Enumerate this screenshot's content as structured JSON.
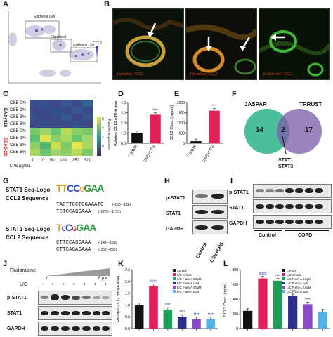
{
  "panels": {
    "A": "A",
    "B": "B",
    "C": "C",
    "D": "D",
    "E": "E",
    "F": "F",
    "G": "G",
    "H": "H",
    "I": "I",
    "J": "J",
    "K": "K",
    "L": "L"
  },
  "panelA": {
    "box1": "Epithelial Cell",
    "box2": "Fibroblast",
    "box3": "Epithelial Cell",
    "legend_title": "CCL2"
  },
  "panelB": {
    "captions": [
      "Epithelial / CCL2",
      "Fibroblast / CCL2",
      "Endothelial / CCL2"
    ]
  },
  "panelC": {
    "row_labels": [
      "CSE-0%",
      "CSE-1%",
      "CSE-3%",
      "CSE-5%",
      "CSE-0%",
      "CSE-1%",
      "CSE-3%",
      "CSE-5%"
    ],
    "group_labels": [
      "EA.hy926",
      "BEAS-2B"
    ],
    "x_ticks": [
      "0",
      "10",
      "50",
      "100",
      "250",
      "500"
    ],
    "xlabel": "LPS ng/mL",
    "scale_ticks": [
      "6",
      "4",
      "2",
      "0"
    ],
    "scale_label": "Relative expression",
    "colors": {
      "low": "#3b4b8a",
      "mid": "#2f9e8f",
      "high": "#e7e44b"
    }
  },
  "panelF": {
    "left_label": "JASPAR",
    "right_label": "TRRUST",
    "left_count": "14",
    "overlap_count": "2",
    "right_count": "17",
    "genes": [
      "STAT1",
      "STAT3"
    ],
    "colors": {
      "left": "#2bb38a",
      "right": "#7a5aa8"
    }
  },
  "panelG": {
    "logo1": "STAT1 Seq-Logo",
    "seq1": "CCL2 Sequence",
    "s1a": "TACTTCCTGGAAATC",
    "p1a": "(-150~-136)",
    "s1b": "TCTCCAGGAAA",
    "p1b": "(-1720~-1710)",
    "logo2": "STAT3 Seq-Logo",
    "seq2": "CCL2 Sequence",
    "s2a": "CTTCCAGGAAA",
    "p2a": "(-148~-138)",
    "s2b": "CTTCAGAGAAA",
    "p2b": "(-302~-292)"
  },
  "panelH": {
    "rows": [
      "p-STAT1",
      "STAT1",
      "GAPDH"
    ],
    "lanes": [
      "Control",
      "CSE+LPS"
    ]
  },
  "panelI": {
    "rows": [
      "p-STAT1",
      "STAT1",
      "GAPDH"
    ],
    "groups": [
      "Control",
      "COPD"
    ]
  },
  "panelJ": {
    "drug": "Fludarabine",
    "conc_low": "0",
    "conc_high": "5 μM",
    "treat_label": "L/C",
    "lane_signs": [
      "-",
      "+",
      "+",
      "+",
      "+",
      "+",
      "+"
    ],
    "rows": [
      "p-STAT1",
      "STAT1",
      "GAPDH"
    ]
  },
  "panelK": {
    "legend": [
      "Control",
      "L/C Vehicle",
      "L/C F-ara-A 0.5μM",
      "L/C F-ara-A 1μM",
      "L/C F-ara-A 2.5μM",
      "L/C F-ara-A 5μM"
    ]
  },
  "panelL": {
    "legend": [
      "Control",
      "L/C Vehicle",
      "L/C F-ara-A 0.5μM",
      "L/C F-ara-A 1μM",
      "L/C F-ara-A 2.5μM",
      "L/C F-ara-A 5μM"
    ]
  },
  "chart_data": [
    {
      "id": "D",
      "type": "bar",
      "categories": [
        "Control",
        "CSE+LPS"
      ],
      "values": [
        1.0,
        2.8
      ],
      "ylabel": "Relative CCL2 mRNA level",
      "ylim": [
        0,
        4
      ],
      "yticks": [
        "0.0",
        "1.0",
        "2.0",
        "3.0",
        "4.0"
      ],
      "annotations": [
        "****"
      ],
      "colors": [
        "#111111",
        "#e0215a"
      ]
    },
    {
      "id": "E",
      "type": "bar",
      "categories": [
        "Control",
        "CSE+LPS"
      ],
      "values": [
        100,
        1600
      ],
      "ylabel": "CCL2 Conc. (ng/mL)",
      "ylim": [
        0,
        2000
      ],
      "yticks": [
        "0",
        "500",
        "1000",
        "1500",
        "2000"
      ],
      "annotations": [
        "****"
      ],
      "colors": [
        "#111111",
        "#e0215a"
      ]
    },
    {
      "id": "K",
      "type": "bar",
      "categories": [
        "Control",
        "L/C Vehicle",
        "L/C F-ara-A 0.5μM",
        "L/C F-ara-A 1μM",
        "L/C F-ara-A 2.5μM",
        "L/C F-ara-A 5μM"
      ],
      "values": [
        1.0,
        1.8,
        0.8,
        0.5,
        0.4,
        0.4
      ],
      "ylabel": "Relative CCL2 mRNA level",
      "ylim": [
        0,
        2.5
      ],
      "yticks": [
        "0.0",
        "0.5",
        "1.0",
        "1.5",
        "2.0",
        "2.5"
      ],
      "annotations": [
        "####",
        "****",
        "****",
        "****",
        "****"
      ],
      "colors": [
        "#111111",
        "#e0215a",
        "#1f9e5a",
        "#2a2d8a",
        "#8a4bc7",
        "#4fb3e8"
      ]
    },
    {
      "id": "L",
      "type": "bar",
      "categories": [
        "Control",
        "L/C Vehicle",
        "L/C F-ara-A 0.5μM",
        "L/C F-ara-A 1μM",
        "L/C F-ara-A 2.5μM",
        "L/C F-ara-A 5μM"
      ],
      "values": [
        240,
        680,
        650,
        440,
        330,
        230
      ],
      "ylabel": "CCL2 Conc. (ng/mL)",
      "ylim": [
        0,
        800
      ],
      "yticks": [
        "0",
        "200",
        "400",
        "600",
        "800"
      ],
      "annotations": [
        "####",
        "****",
        "****",
        "****"
      ],
      "colors": [
        "#111111",
        "#e0215a",
        "#1f9e5a",
        "#2a2d8a",
        "#8a4bc7",
        "#4fb3e8"
      ]
    }
  ]
}
